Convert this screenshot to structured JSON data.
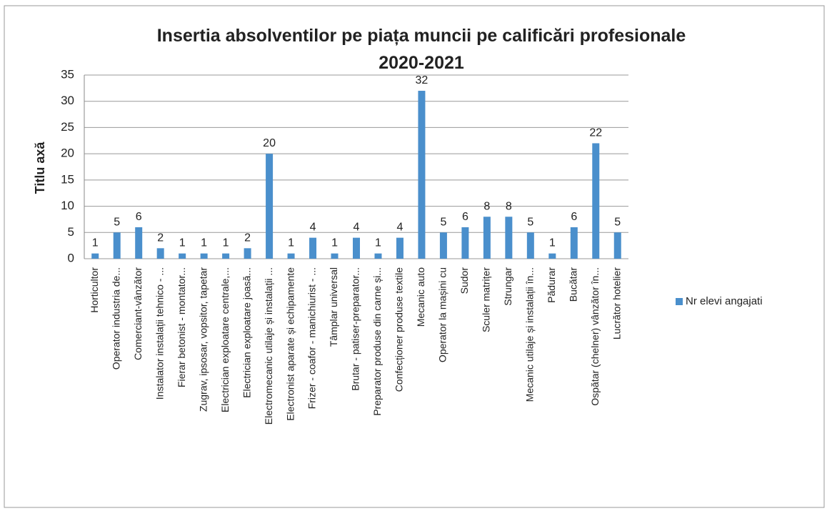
{
  "chart_data": {
    "type": "bar",
    "title": [
      "Insertia absolventilor pe piața muncii pe calificări profesionale",
      "2020-2021"
    ],
    "y_label": "Titlu axă",
    "categories": [
      "Horticultor",
      "Operator industria de...",
      "Comerciant-vânzător",
      "Instalator instalații tehnico - ...",
      "Fierar betonist - montator...",
      "Zugrav, ipsosar, vopsitor, tapetar",
      "Electrician exploatare centrale,...",
      "Electrician exploatare joasă...",
      "Electromecanic utilaje și instalații ...",
      "Electronist aparate și echipamente",
      "Frizer - coafor - manichiurist - ...",
      "Tâmplar universal",
      "Brutar - patiser-preparator...",
      "Preparator produse din carne și...",
      "Confecționer produse textile",
      "Mecanic auto",
      "Operator la mașini cu",
      "Sudor",
      "Sculer matrițer",
      "Strungar",
      "Mecanic utilaje și instalații în...",
      "Pădurar",
      "Bucătar",
      "Ospătar (chelner) vânzător în...",
      "Lucrător hotelier"
    ],
    "series": [
      {
        "name": "Nr elevi angajati",
        "color": "#4a8fcc",
        "values": [
          1,
          5,
          6,
          2,
          1,
          1,
          1,
          2,
          20,
          1,
          4,
          1,
          4,
          1,
          4,
          32,
          5,
          6,
          8,
          8,
          5,
          1,
          6,
          22,
          5
        ]
      }
    ],
    "ylim": [
      0,
      35
    ],
    "yticks": [
      0,
      5,
      10,
      15,
      20,
      25,
      30,
      35
    ],
    "grid": true,
    "legend": "right"
  }
}
